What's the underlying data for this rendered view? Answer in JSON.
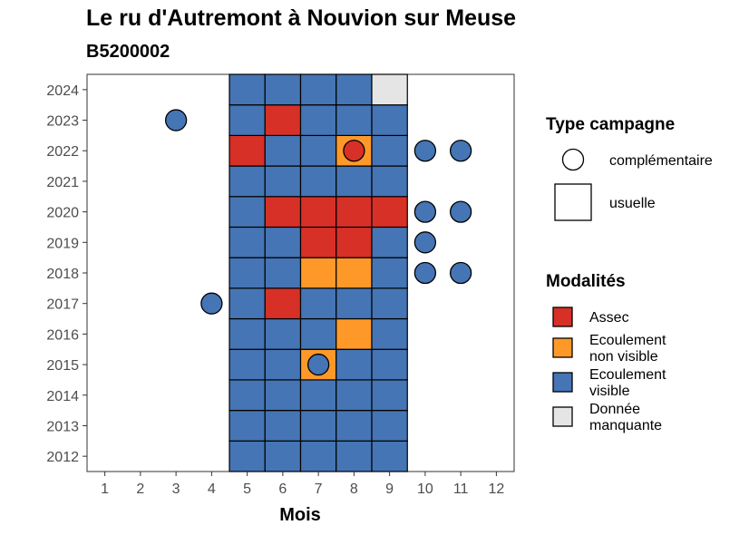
{
  "chart_data": {
    "type": "heatmap",
    "title": "Le ru d'Autremont à Nouvion sur Meuse",
    "subtitle": "B5200002",
    "xlabel": "Mois",
    "ylabel": "",
    "x_ticks": [
      "1",
      "2",
      "3",
      "4",
      "5",
      "6",
      "7",
      "8",
      "9",
      "10",
      "11",
      "12"
    ],
    "y_ticks": [
      "2012",
      "2013",
      "2014",
      "2015",
      "2016",
      "2017",
      "2018",
      "2019",
      "2020",
      "2021",
      "2022",
      "2023",
      "2024"
    ],
    "xlim": [
      0.5,
      12.5
    ],
    "ylim": [
      2011.5,
      2024.5
    ],
    "grid": false,
    "colors": {
      "Assec": "#d73027",
      "Ecoulement non visible": "#fe9929",
      "Ecoulement visible": "#4575b4",
      "Donnée manquante": "#e5e5e5"
    },
    "legend_shape": {
      "title": "Type campagne",
      "items": [
        {
          "shape": "circle",
          "label": "complémentaire"
        },
        {
          "shape": "square",
          "label": "usuelle"
        }
      ]
    },
    "legend_fill": {
      "title": "Modalités",
      "items": [
        {
          "key": "Assec",
          "lines": [
            "Assec"
          ]
        },
        {
          "key": "Ecoulement non visible",
          "lines": [
            "Ecoulement",
            "non visible"
          ]
        },
        {
          "key": "Ecoulement visible",
          "lines": [
            "Ecoulement",
            "visible"
          ]
        },
        {
          "key": "Donnée manquante",
          "lines": [
            "Donnée",
            "manquante"
          ]
        }
      ]
    },
    "usuelle": {
      "2024": [
        "Ecoulement visible",
        "Ecoulement visible",
        "Ecoulement visible",
        "Ecoulement visible",
        "Donnée manquante"
      ],
      "2023": [
        "Ecoulement visible",
        "Assec",
        "Ecoulement visible",
        "Ecoulement visible",
        "Ecoulement visible"
      ],
      "2022": [
        "Assec",
        "Ecoulement visible",
        "Ecoulement visible",
        "Ecoulement non visible",
        "Ecoulement visible"
      ],
      "2021": [
        "Ecoulement visible",
        "Ecoulement visible",
        "Ecoulement visible",
        "Ecoulement visible",
        "Ecoulement visible"
      ],
      "2020": [
        "Ecoulement visible",
        "Assec",
        "Assec",
        "Assec",
        "Assec"
      ],
      "2019": [
        "Ecoulement visible",
        "Ecoulement visible",
        "Assec",
        "Assec",
        "Ecoulement visible"
      ],
      "2018": [
        "Ecoulement visible",
        "Ecoulement visible",
        "Ecoulement non visible",
        "Ecoulement non visible",
        "Ecoulement visible"
      ],
      "2017": [
        "Ecoulement visible",
        "Assec",
        "Ecoulement visible",
        "Ecoulement visible",
        "Ecoulement visible"
      ],
      "2016": [
        "Ecoulement visible",
        "Ecoulement visible",
        "Ecoulement visible",
        "Ecoulement non visible",
        "Ecoulement visible"
      ],
      "2015": [
        "Ecoulement visible",
        "Ecoulement visible",
        "Ecoulement non visible",
        "Ecoulement visible",
        "Ecoulement visible"
      ],
      "2014": [
        "Ecoulement visible",
        "Ecoulement visible",
        "Ecoulement visible",
        "Ecoulement visible",
        "Ecoulement visible"
      ],
      "2013": [
        "Ecoulement visible",
        "Ecoulement visible",
        "Ecoulement visible",
        "Ecoulement visible",
        "Ecoulement visible"
      ],
      "2012": [
        "Ecoulement visible",
        "Ecoulement visible",
        "Ecoulement visible",
        "Ecoulement visible",
        "Ecoulement visible"
      ]
    },
    "usuelle_months": [
      5,
      6,
      7,
      8,
      9
    ],
    "complementaire": [
      {
        "year": 2023,
        "month": 3,
        "value": "Ecoulement visible"
      },
      {
        "year": 2022,
        "month": 8,
        "value": "Assec"
      },
      {
        "year": 2022,
        "month": 10,
        "value": "Ecoulement visible"
      },
      {
        "year": 2022,
        "month": 11,
        "value": "Ecoulement visible"
      },
      {
        "year": 2020,
        "month": 10,
        "value": "Ecoulement visible"
      },
      {
        "year": 2020,
        "month": 11,
        "value": "Ecoulement visible"
      },
      {
        "year": 2019,
        "month": 10,
        "value": "Ecoulement visible"
      },
      {
        "year": 2018,
        "month": 10,
        "value": "Ecoulement visible"
      },
      {
        "year": 2018,
        "month": 11,
        "value": "Ecoulement visible"
      },
      {
        "year": 2017,
        "month": 4,
        "value": "Ecoulement visible"
      },
      {
        "year": 2015,
        "month": 7,
        "value": "Ecoulement visible"
      }
    ]
  }
}
